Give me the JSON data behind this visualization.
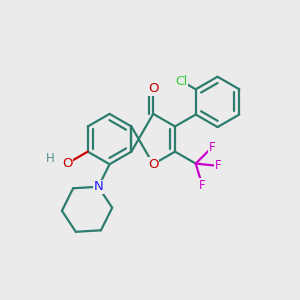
{
  "bg_color": "#ebebeb",
  "bond_color": "#2d7d6e",
  "bond_width": 1.6,
  "atom_colors": {
    "O": "#cc0000",
    "H": "#5a9090",
    "N": "#1a1aff",
    "F": "#cc00cc",
    "Cl": "#33cc33"
  },
  "font_size": 9.5
}
